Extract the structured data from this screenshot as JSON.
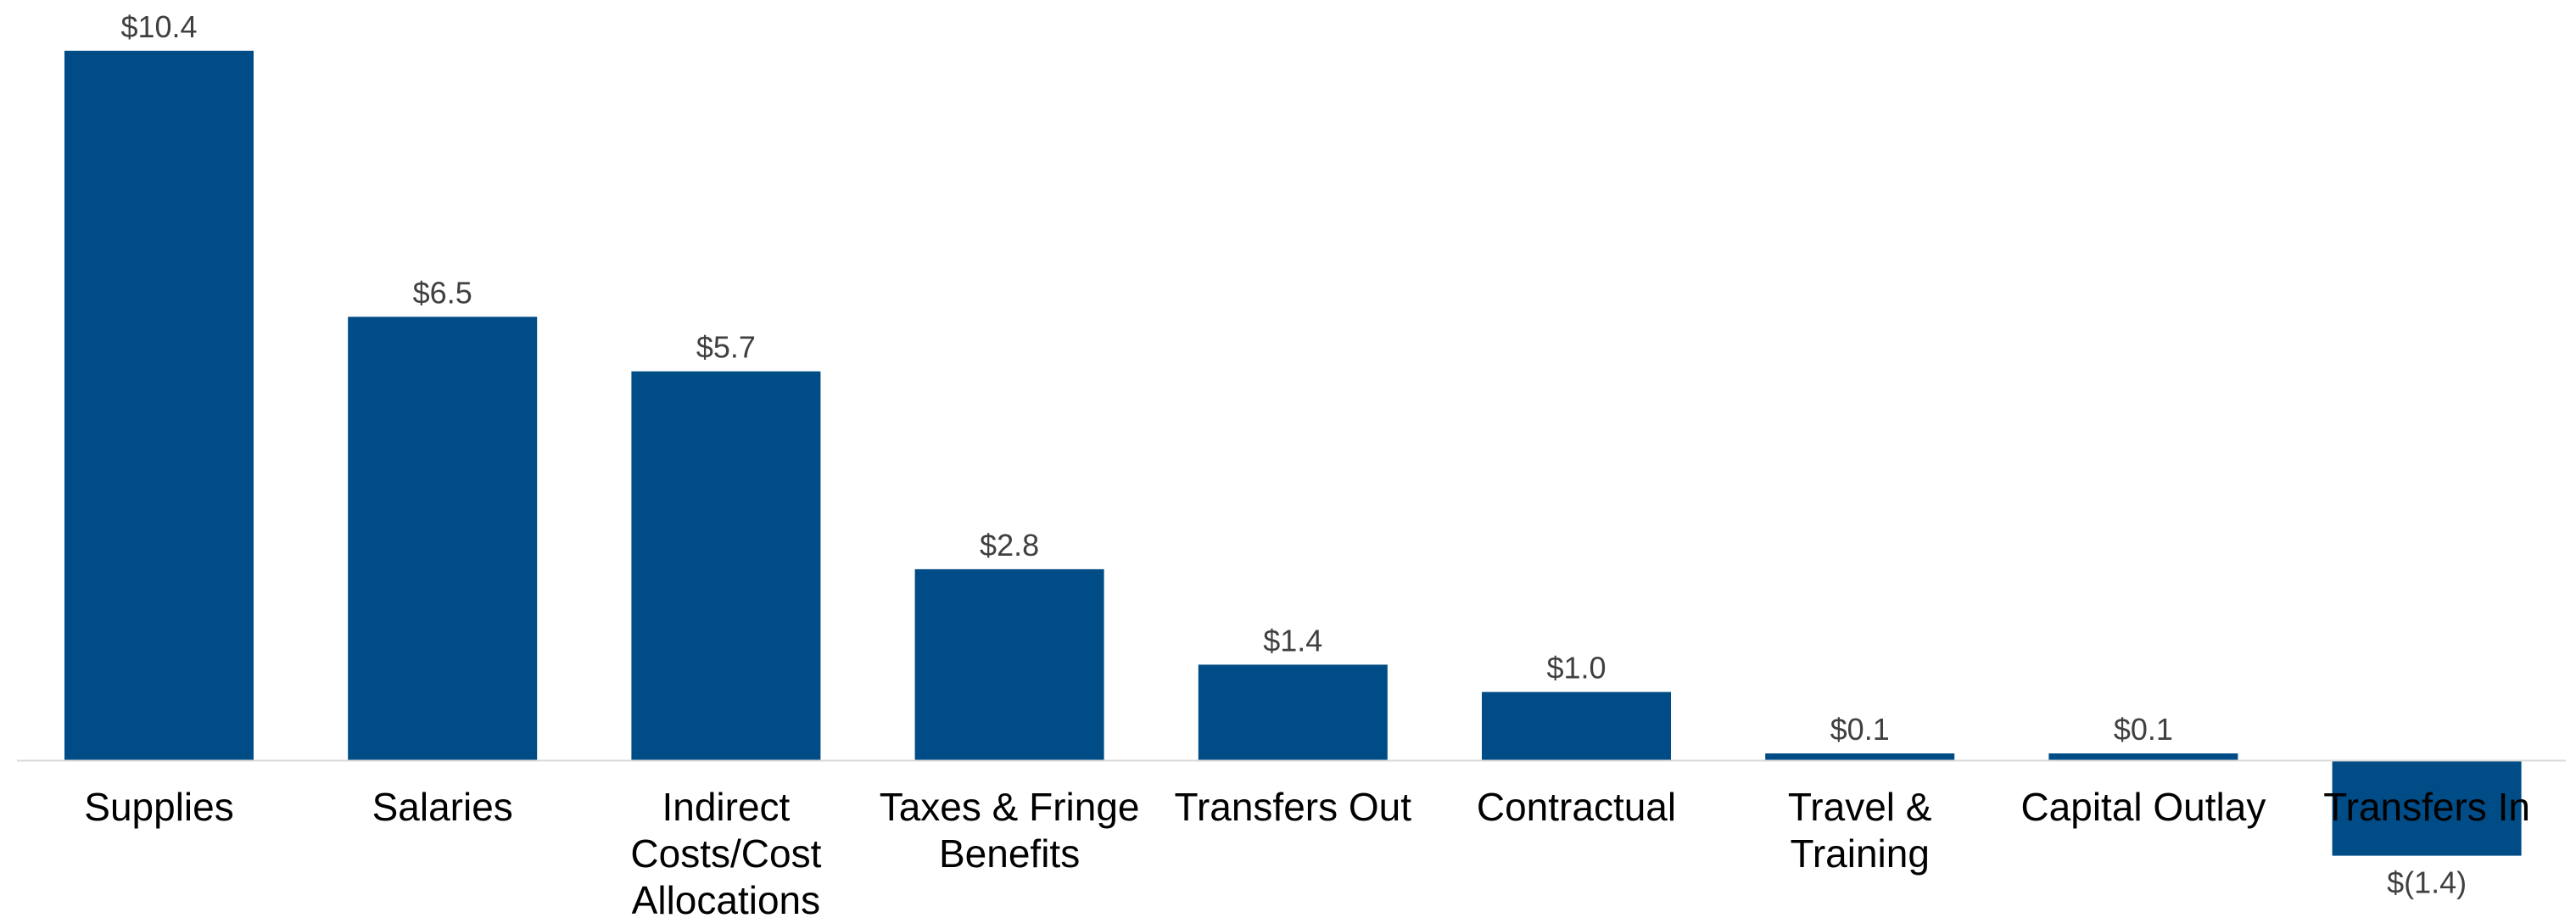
{
  "chart_data": {
    "type": "bar",
    "categories": [
      [
        "Supplies"
      ],
      [
        "Salaries"
      ],
      [
        "Indirect",
        "Costs/Cost",
        "Allocations"
      ],
      [
        "Taxes & Fringe",
        "Benefits"
      ],
      [
        "Transfers Out"
      ],
      [
        "Contractual"
      ],
      [
        "Travel &",
        "Training"
      ],
      [
        "Capital Outlay"
      ],
      [
        "Transfers In"
      ]
    ],
    "values": [
      10.4,
      6.5,
      5.7,
      2.8,
      1.4,
      1.0,
      0.1,
      0.1,
      -1.4
    ],
    "data_labels": [
      "$10.4",
      "$6.5",
      "$5.7",
      "$2.8",
      "$1.4",
      "$1.0",
      "$0.1",
      "$0.1",
      "$(1.4)"
    ],
    "title": "",
    "xlabel": "",
    "ylabel": "",
    "ylim": [
      -1.4,
      10.4
    ],
    "grid": false,
    "legend": "none",
    "colors": {
      "bar": "#004C87",
      "axis": "#D9D9D9",
      "data_label": "#404040",
      "category_label": "#000000"
    }
  }
}
